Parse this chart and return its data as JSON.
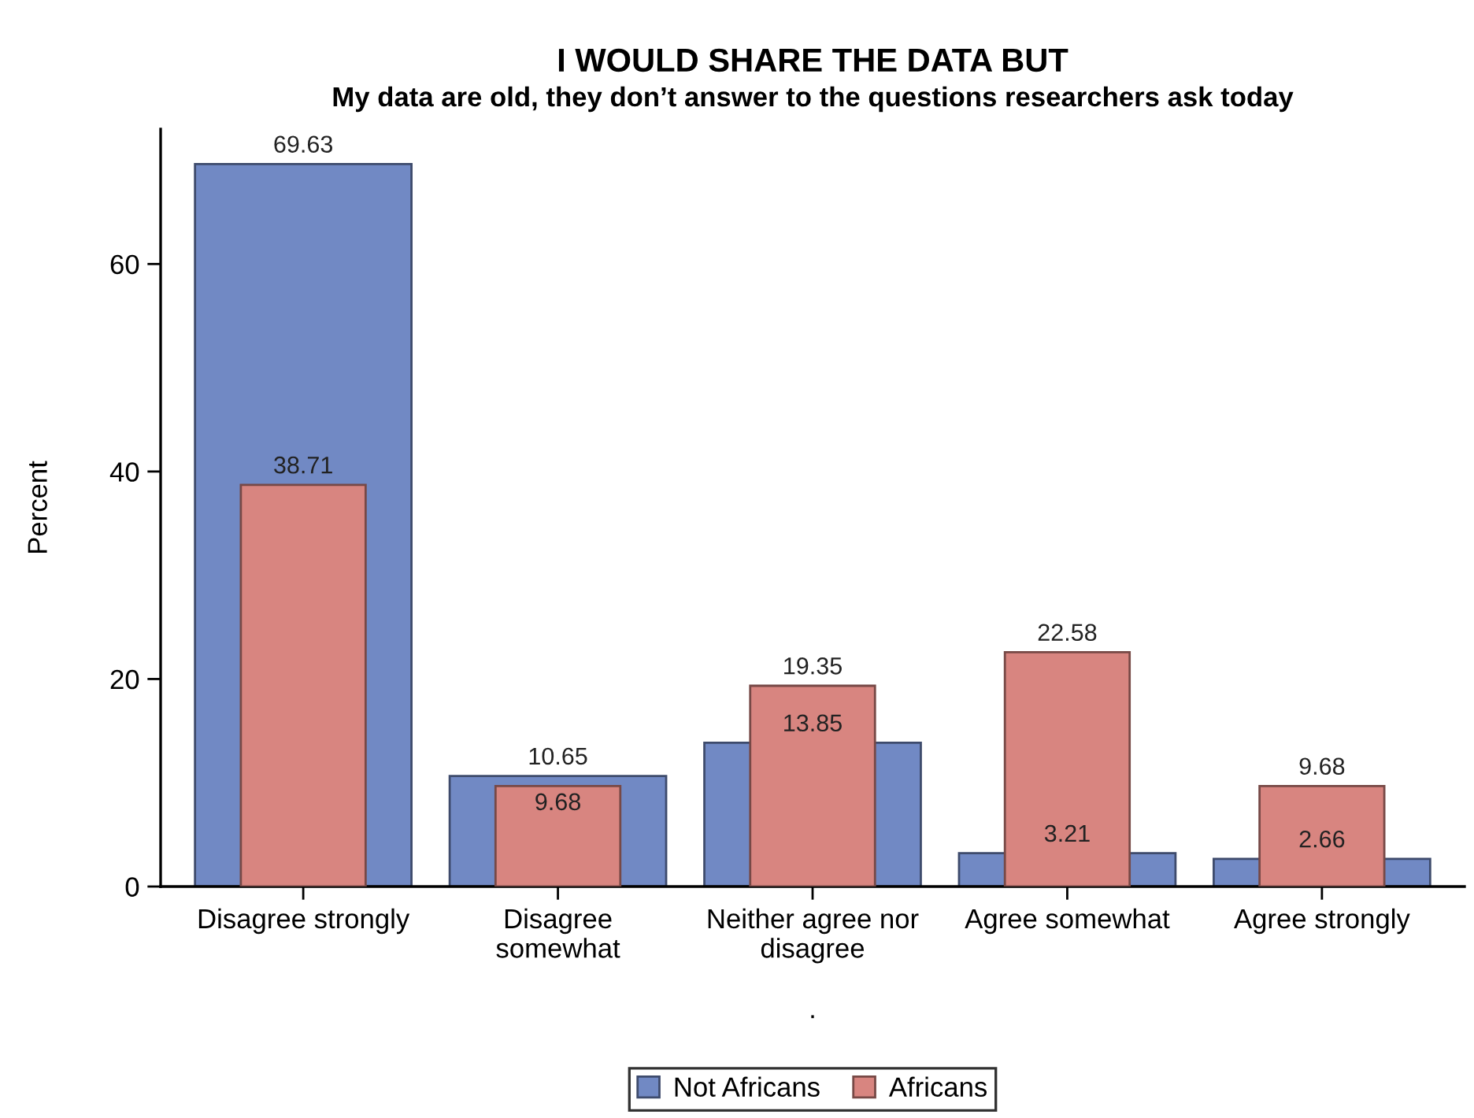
{
  "chart_data": {
    "type": "bar",
    "title": "I WOULD SHARE THE DATA BUT",
    "subtitle": "My data are old, they don’t answer to the questions researchers ask today",
    "xlabel": ".",
    "ylabel": "Percent",
    "categories": [
      "Disagree strongly",
      "Disagree somewhat",
      "Neither agree nor disagree",
      "Agree somewhat",
      "Agree strongly"
    ],
    "series": [
      {
        "name": "Not Africans",
        "color": "#7189c4",
        "values": [
          69.63,
          10.65,
          13.85,
          3.21,
          2.66
        ]
      },
      {
        "name": "Africans",
        "color": "#d88580",
        "values": [
          38.71,
          9.68,
          19.35,
          22.58,
          9.68
        ]
      }
    ],
    "ylim": [
      0,
      73
    ],
    "yticks": [
      0,
      20,
      40,
      60
    ],
    "data_labels": true,
    "legend": "bottom"
  }
}
